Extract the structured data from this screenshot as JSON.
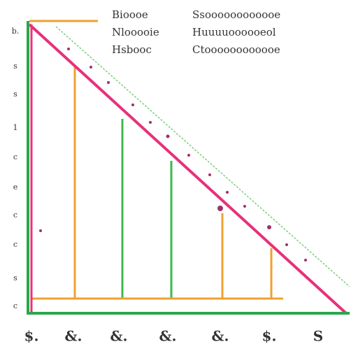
{
  "header": {
    "left": [
      "Bioooe",
      "Nlooooie",
      "Hsbooc"
    ],
    "right": [
      "Ssoooooooooooe",
      "Huuuuoooooeol",
      "Ctoooooooooooe"
    ]
  },
  "y_labels": [
    "b.",
    "s",
    "s",
    "1",
    "c",
    "e",
    "c",
    "c",
    "s",
    "c"
  ],
  "x_labels": [
    "$.",
    "&.",
    "&.",
    "&.",
    "&.",
    "$.",
    "S"
  ]
}
